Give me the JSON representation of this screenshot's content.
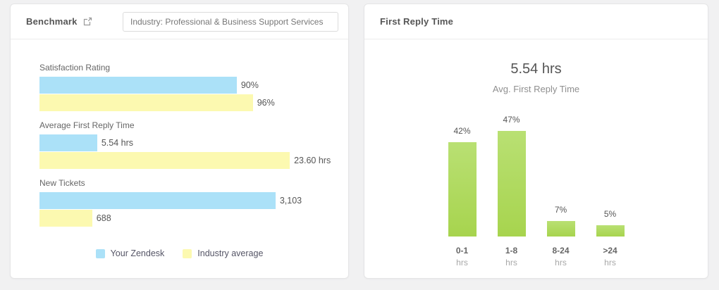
{
  "page": {
    "background": "#f1f1f2"
  },
  "benchmark_card": {
    "title": "Benchmark",
    "filter_value": "Industry: Professional & Business Support Services",
    "legend": [
      {
        "label": "Your Zendesk",
        "color": "#abe1f8"
      },
      {
        "label": "Industry average",
        "color": "#fcf9b0"
      }
    ]
  },
  "first_reply_card": {
    "title": "First Reply Time",
    "stat_value": "5.54 hrs",
    "stat_label": "Avg. First Reply Time"
  },
  "chart_data": [
    {
      "type": "bar",
      "orientation": "horizontal",
      "title": "Benchmark",
      "categories": [
        "Satisfaction Rating",
        "Average First Reply Time",
        "New Tickets"
      ],
      "series": [
        {
          "name": "Your Zendesk",
          "color": "#abe1f8",
          "values": [
            90,
            5.54,
            3103
          ],
          "value_labels": [
            "90%",
            "5.54 hrs",
            "3,103"
          ],
          "bar_width_pct": [
            63.6,
            18.6,
            76.1
          ]
        },
        {
          "name": "Industry average",
          "color": "#fcf9b0",
          "values": [
            96,
            23.6,
            688
          ],
          "value_labels": [
            "96%",
            "23.60 hrs",
            "688"
          ],
          "bar_width_pct": [
            68.8,
            80.7,
            17.0
          ]
        }
      ],
      "value_label_position": "right-of-bar",
      "legend_position": "bottom-center",
      "grid": false
    },
    {
      "type": "bar",
      "orientation": "vertical",
      "title": "First Reply Time",
      "categories": [
        "0-1",
        "1-8",
        "8-24",
        ">24"
      ],
      "category_unit": "hrs",
      "values": [
        42,
        47,
        7,
        5
      ],
      "value_labels": [
        "42%",
        "47%",
        "7%",
        "5%"
      ],
      "ylim": [
        0,
        50
      ],
      "bar_color_top": "#b9e073",
      "bar_color_bottom": "#a7d44e",
      "value_label_position": "above-bar",
      "grid": false
    }
  ]
}
